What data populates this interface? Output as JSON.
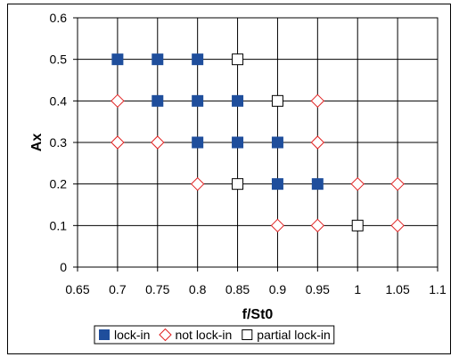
{
  "chart_data": {
    "type": "scatter",
    "xlabel": "f/St0",
    "ylabel": "Ax",
    "xlim": [
      0.65,
      1.1
    ],
    "ylim": [
      0,
      0.6
    ],
    "x_ticks": [
      0.65,
      0.7,
      0.75,
      0.8,
      0.85,
      0.9,
      0.95,
      1,
      1.05,
      1.1
    ],
    "y_ticks": [
      0,
      0.1,
      0.2,
      0.3,
      0.4,
      0.5,
      0.6
    ],
    "x_tick_labels": [
      "0.65",
      "0.7",
      "0.75",
      "0.8",
      "0.85",
      "0.9",
      "0.95",
      "1",
      "1.05",
      "1.1"
    ],
    "y_tick_labels": [
      "0",
      "0.1",
      "0.2",
      "0.3",
      "0.4",
      "0.5",
      "0.6"
    ],
    "grid": true,
    "legend_position": "bottom",
    "series": [
      {
        "name": "lock-in",
        "marker": "filled-square",
        "color": "#1f4e9c",
        "points": [
          [
            0.7,
            0.5
          ],
          [
            0.75,
            0.5
          ],
          [
            0.8,
            0.5
          ],
          [
            0.75,
            0.4
          ],
          [
            0.8,
            0.4
          ],
          [
            0.85,
            0.4
          ],
          [
            0.8,
            0.3
          ],
          [
            0.85,
            0.3
          ],
          [
            0.9,
            0.3
          ],
          [
            0.9,
            0.2
          ],
          [
            0.95,
            0.2
          ]
        ]
      },
      {
        "name": "not lock-in",
        "marker": "hollow-diamond",
        "color": "#e02020",
        "points": [
          [
            0.7,
            0.4
          ],
          [
            0.95,
            0.4
          ],
          [
            0.7,
            0.3
          ],
          [
            0.75,
            0.3
          ],
          [
            0.95,
            0.3
          ],
          [
            0.8,
            0.2
          ],
          [
            1.0,
            0.2
          ],
          [
            1.05,
            0.2
          ],
          [
            0.9,
            0.1
          ],
          [
            0.95,
            0.1
          ],
          [
            1.05,
            0.1
          ]
        ]
      },
      {
        "name": "partial lock-in",
        "marker": "hollow-square",
        "color": "#000000",
        "points": [
          [
            0.85,
            0.5
          ],
          [
            0.9,
            0.4
          ],
          [
            0.85,
            0.2
          ],
          [
            1.0,
            0.1
          ]
        ]
      }
    ]
  }
}
